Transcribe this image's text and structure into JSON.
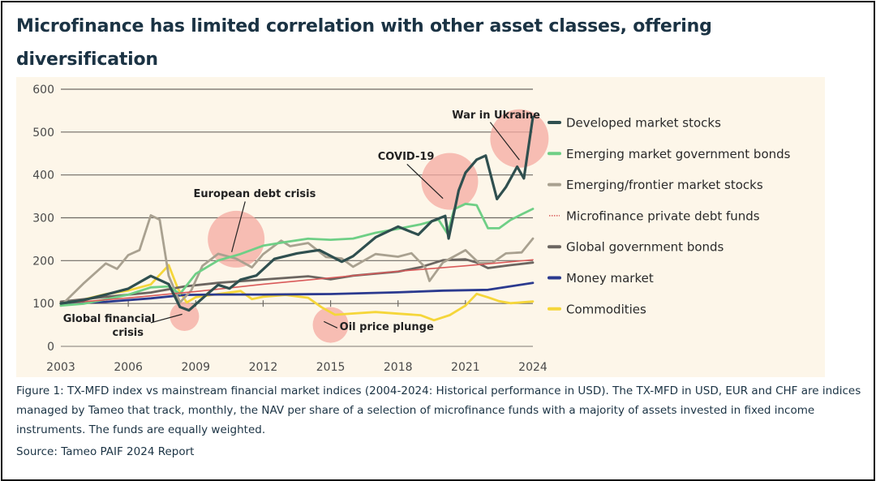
{
  "title": "Microfinance has limited correlation with other asset classes, offering diversification",
  "caption": "Figure 1: TX-MFD index vs mainstream financial market indices (2004-2024: Historical performance in USD). The TX-MFD in USD, EUR and CHF are indices managed by Tameo that track, monthly, the NAV per share of a selection of microfinance funds with a majority of assets invested in fixed income instruments. The funds are equally weighted.",
  "source": "Source: Tameo PAIF 2024 Report",
  "chart_data": {
    "type": "line",
    "title": "",
    "xlabel": "",
    "ylabel": "",
    "xlim": [
      2003,
      2024
    ],
    "ylim": [
      0,
      600
    ],
    "x_ticks": [
      "2003",
      "2006",
      "2009",
      "2012",
      "2015",
      "2018",
      "2021",
      "2024"
    ],
    "y_ticks": [
      "0",
      "100",
      "200",
      "300",
      "400",
      "500",
      "600"
    ],
    "grid": "horizontal",
    "legend_position": "right",
    "series": [
      {
        "name": "Developed market stocks",
        "color": "#2f4f4f",
        "style": "solid",
        "x": [
          2003,
          2004,
          2005,
          2006,
          2007,
          2007.8,
          2008.3,
          2008.7,
          2009.5,
          2010,
          2010.5,
          2011,
          2011.7,
          2012.5,
          2013.5,
          2014.5,
          2015.5,
          2016,
          2017,
          2018,
          2018.9,
          2019.5,
          2020.1,
          2020.25,
          2020.7,
          2021,
          2021.5,
          2021.9,
          2022.4,
          2022.8,
          2023.3,
          2023.6,
          2024
        ],
        "values": [
          100,
          110,
          125,
          140,
          170,
          150,
          95,
          85,
          120,
          140,
          130,
          150,
          160,
          200,
          215,
          225,
          200,
          215,
          260,
          285,
          265,
          295,
          305,
          250,
          360,
          400,
          430,
          440,
          340,
          370,
          420,
          395,
          540
        ]
      },
      {
        "name": "Emerging market government bonds",
        "color": "#6fcf86",
        "style": "solid",
        "x": [
          2003,
          2004,
          2005,
          2006,
          2007,
          2007.8,
          2008.3,
          2009,
          2010,
          2011,
          2012,
          2013,
          2014,
          2015,
          2016,
          2017,
          2018,
          2019,
          2019.8,
          2020.2,
          2020.5,
          2021,
          2021.5,
          2022,
          2022.5,
          2023,
          2023.5,
          2024
        ],
        "values": [
          100,
          105,
          115,
          125,
          140,
          140,
          120,
          165,
          195,
          210,
          230,
          240,
          250,
          250,
          255,
          270,
          280,
          290,
          300,
          265,
          320,
          330,
          325,
          270,
          270,
          290,
          305,
          320
        ]
      },
      {
        "name": "Emerging/frontier market stocks",
        "color": "#a9a190",
        "style": "solid",
        "x": [
          2003,
          2004,
          2005,
          2005.5,
          2006,
          2006.5,
          2007,
          2007.4,
          2007.8,
          2008.3,
          2008.8,
          2009.3,
          2010,
          2010.8,
          2011.5,
          2012,
          2012.8,
          2013.2,
          2014,
          2014.8,
          2015.5,
          2016,
          2017,
          2018,
          2018.6,
          2019.2,
          2019.4,
          2020,
          2021,
          2021.6,
          2022.2,
          2022.8,
          2023.5,
          2024
        ],
        "values": [
          100,
          150,
          195,
          180,
          210,
          220,
          300,
          290,
          160,
          100,
          130,
          190,
          220,
          210,
          190,
          220,
          250,
          235,
          240,
          205,
          200,
          180,
          210,
          205,
          215,
          185,
          155,
          200,
          230,
          200,
          200,
          220,
          220,
          250
        ]
      },
      {
        "name": "Microfinance private debt funds",
        "color": "#d95a5a",
        "style": "dotted",
        "x": [
          2003,
          2006,
          2009,
          2012,
          2015,
          2018,
          2021,
          2024
        ],
        "values": [
          100,
          113,
          128,
          145,
          160,
          175,
          188,
          202
        ]
      },
      {
        "name": "Global government bonds",
        "color": "#6b6560",
        "style": "solid",
        "x": [
          2003,
          2005,
          2007,
          2008.5,
          2010,
          2012,
          2014,
          2015,
          2016,
          2018,
          2019,
          2020,
          2021,
          2021.5,
          2022,
          2023,
          2024
        ],
        "values": [
          100,
          110,
          120,
          135,
          145,
          155,
          165,
          160,
          170,
          180,
          190,
          205,
          205,
          195,
          180,
          185,
          190
        ]
      },
      {
        "name": "Money market",
        "color": "#2b3a8f",
        "style": "solid",
        "x": [
          2003,
          2005,
          2007,
          2008.5,
          2010,
          2012,
          2015,
          2018,
          2020,
          2022,
          2023,
          2024
        ],
        "values": [
          100,
          104,
          112,
          120,
          121,
          121,
          122,
          126,
          130,
          132,
          140,
          148
        ]
      },
      {
        "name": "Commodities",
        "color": "#f5d63a",
        "style": "solid",
        "x": [
          2003,
          2004,
          2005,
          2006,
          2007,
          2007.8,
          2008.2,
          2008.6,
          2009,
          2010,
          2011,
          2011.5,
          2012,
          2013,
          2014,
          2014.6,
          2015.2,
          2016,
          2017,
          2018,
          2019,
          2019.6,
          2020.3,
          2021,
          2021.5,
          2022,
          2022.5,
          2023,
          2024
        ],
        "values": [
          100,
          110,
          125,
          135,
          150,
          195,
          140,
          105,
          115,
          120,
          125,
          105,
          110,
          115,
          110,
          90,
          75,
          80,
          85,
          82,
          78,
          65,
          75,
          95,
          120,
          110,
          100,
          95,
          100
        ]
      }
    ],
    "annotations": [
      {
        "label": "Global financial crisis",
        "x": 2008.5,
        "y": 70
      },
      {
        "label": "European debt crisis",
        "x": 2010.8,
        "y": 250
      },
      {
        "label": "Oil price plunge",
        "x": 2015,
        "y": 55
      },
      {
        "label": "COVID-19",
        "x": 2020.3,
        "y": 385
      },
      {
        "label": "War in Ukraine",
        "x": 2023.4,
        "y": 485
      }
    ]
  }
}
